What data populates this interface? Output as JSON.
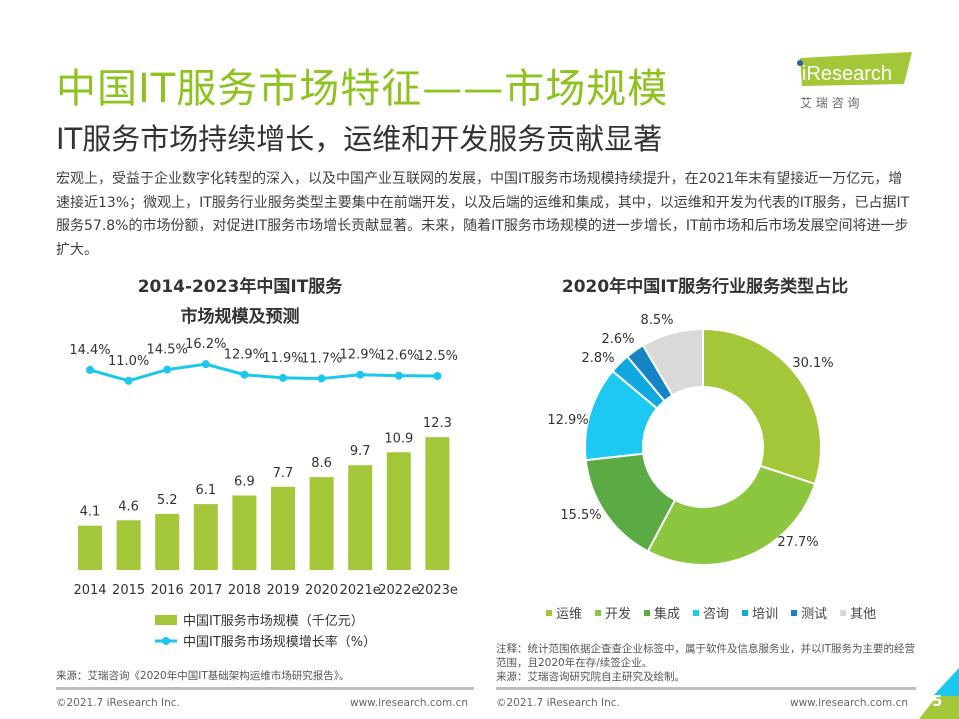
{
  "header": {
    "title": "中国IT服务市场特征——市场规模",
    "subtitle": "IT服务市场持续增长，运维和开发服务贡献显著"
  },
  "logo": {
    "brand": "iResearch",
    "cn": "艾 瑞 咨 询",
    "accent": "#a4c639"
  },
  "body": "宏观上，受益于企业数字化转型的深入，以及中国产业互联网的发展，中国IT服务市场规模持续提升，在2021年末有望接近一万亿元，增速接近13%；微观上，IT服务行业服务类型主要集中在前端开发，以及后端的运维和集成，其中，以运维和开发为代表的IT服务，已占据IT服务57.8%的市场份额，对促进IT服务市场增长贡献显著。未来，随着IT服务市场规模的进一步增长，IT前市场和后市场发展空间将进一步扩大。",
  "chart_data": [
    {
      "type": "bar",
      "title": "2014-2023年中国IT服务市场规模及预测",
      "title_lines": [
        "2014-2023年中国IT服务",
        "市场规模及预测"
      ],
      "categories": [
        "2014",
        "2015",
        "2016",
        "2017",
        "2018",
        "2019",
        "2020",
        "2021e",
        "2022e",
        "2023e"
      ],
      "series": [
        {
          "name": "中国IT服务市场规模（千亿元）",
          "type": "bar",
          "color": "#a4c639",
          "values": [
            4.1,
            4.6,
            5.2,
            6.1,
            6.9,
            7.7,
            8.6,
            9.7,
            10.9,
            12.3
          ],
          "labels": [
            "4.1",
            "4.6",
            "5.2",
            "6.1",
            "6.9",
            "7.7",
            "8.6",
            "9.7",
            "10.9",
            "12.3"
          ]
        },
        {
          "name": "中国IT服务市场规模增长率（%）",
          "type": "line",
          "color": "#1cc7ef",
          "values": [
            14.4,
            11.0,
            14.5,
            16.2,
            12.9,
            11.9,
            11.7,
            12.9,
            12.6,
            12.5
          ],
          "labels": [
            "14.4%",
            "11.0%",
            "14.5%",
            "16.2%",
            "12.9%",
            "11.9%",
            "11.7%",
            "12.9%",
            "12.6%",
            "12.5%"
          ]
        }
      ],
      "legend": "bottom"
    },
    {
      "type": "pie",
      "donut": true,
      "title": "2020年中国IT服务行业服务类型占比",
      "slices": [
        {
          "name": "运维",
          "value": 30.1,
          "label": "30.1%",
          "color": "#a4c639"
        },
        {
          "name": "开发",
          "value": 27.7,
          "label": "27.7%",
          "color": "#8cc63f"
        },
        {
          "name": "集成",
          "value": 15.5,
          "label": "15.5%",
          "color": "#5bab45"
        },
        {
          "name": "咨询",
          "value": 12.9,
          "label": "12.9%",
          "color": "#1dc9f0"
        },
        {
          "name": "培训",
          "value": 2.8,
          "label": "2.8%",
          "color": "#0fa8e0"
        },
        {
          "name": "测试",
          "value": 2.6,
          "label": "2.6%",
          "color": "#1583c4"
        },
        {
          "name": "其他",
          "value": 8.5,
          "label": "8.5%",
          "color": "#d9d9d9"
        }
      ],
      "legend": "bottom"
    }
  ],
  "notes": {
    "left_source": "来源：艾瑞咨询《2020年中国IT基础架构运维市场研究报告》。",
    "right_note": "注释：统计范围依据企查查企业标签中，属于软件及信息服务业，并以IT服务为主要的经营范围，且2020年在存/续签企业。",
    "right_source": "来源：艾瑞咨询研究院自主研究及绘制。"
  },
  "footer": {
    "copyright": "©2021.7 iResearch Inc.",
    "url": "www.iresearch.com.cn",
    "page": "5"
  }
}
